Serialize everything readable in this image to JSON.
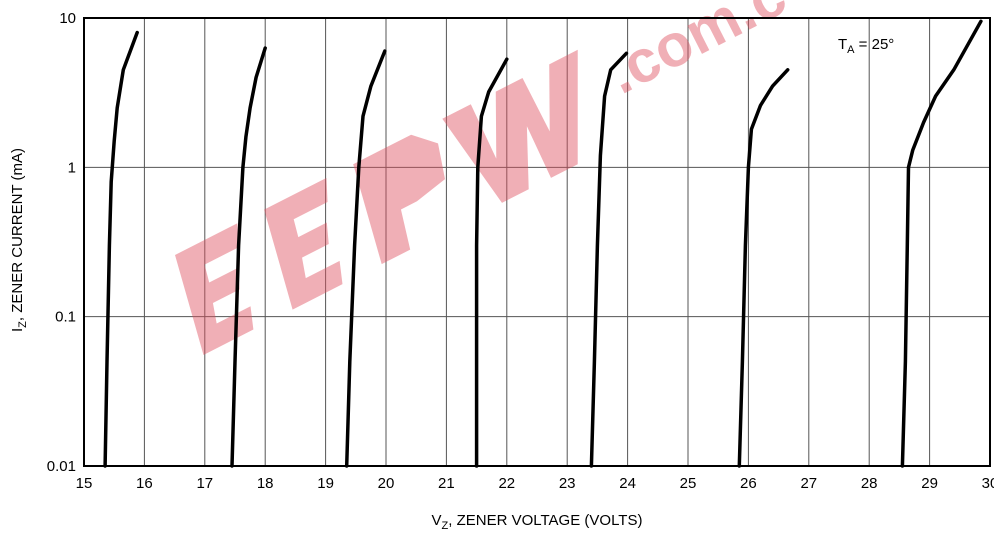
{
  "chart_data": {
    "type": "line",
    "title": "",
    "xlabel": {
      "main": "V",
      "sub": "Z",
      "rest": ", ZENER VOLTAGE (VOLTS)"
    },
    "ylabel": {
      "main": "I",
      "sub": "Z",
      "rest": ", ZENER CURRENT (mA)"
    },
    "xlim": [
      15,
      30
    ],
    "ylim": [
      0.01,
      10
    ],
    "yscale": "log",
    "grid": true,
    "x_ticks": [
      "15",
      "16",
      "17",
      "18",
      "19",
      "20",
      "21",
      "22",
      "23",
      "24",
      "25",
      "26",
      "27",
      "28",
      "29",
      "30"
    ],
    "y_ticks": [
      {
        "label": "0.01",
        "value": 0.01
      },
      {
        "label": "0.1",
        "value": 0.1
      },
      {
        "label": "1",
        "value": 1
      },
      {
        "label": "10",
        "value": 10
      }
    ],
    "annotation": {
      "main": "T",
      "sub": "A",
      "rest": " = 25°"
    },
    "series": [
      {
        "points": [
          [
            15.35,
            0.01
          ],
          [
            15.38,
            0.05
          ],
          [
            15.42,
            0.3
          ],
          [
            15.45,
            0.8
          ],
          [
            15.5,
            1.5
          ],
          [
            15.55,
            2.5
          ],
          [
            15.65,
            4.5
          ],
          [
            15.88,
            8
          ]
        ]
      },
      {
        "points": [
          [
            17.45,
            0.01
          ],
          [
            17.5,
            0.05
          ],
          [
            17.56,
            0.3
          ],
          [
            17.63,
            1.0
          ],
          [
            17.68,
            1.6
          ],
          [
            17.75,
            2.5
          ],
          [
            17.85,
            4
          ],
          [
            18.0,
            6.3
          ]
        ]
      },
      {
        "points": [
          [
            19.35,
            0.01
          ],
          [
            19.4,
            0.05
          ],
          [
            19.48,
            0.3
          ],
          [
            19.55,
            1.0
          ],
          [
            19.62,
            2.2
          ],
          [
            19.75,
            3.5
          ],
          [
            19.98,
            6.0
          ]
        ]
      },
      {
        "points": [
          [
            21.5,
            0.01
          ],
          [
            21.5,
            0.3
          ],
          [
            21.52,
            1.0
          ],
          [
            21.58,
            2.2
          ],
          [
            21.7,
            3.2
          ],
          [
            22.0,
            5.3
          ]
        ]
      },
      {
        "points": [
          [
            23.4,
            0.01
          ],
          [
            23.45,
            0.05
          ],
          [
            23.5,
            0.3
          ],
          [
            23.55,
            1.2
          ],
          [
            23.62,
            3.0
          ],
          [
            23.72,
            4.5
          ],
          [
            23.98,
            5.8
          ]
        ]
      },
      {
        "points": [
          [
            25.85,
            0.01
          ],
          [
            25.9,
            0.05
          ],
          [
            25.95,
            0.3
          ],
          [
            26.0,
            1.0
          ],
          [
            26.05,
            1.8
          ],
          [
            26.2,
            2.6
          ],
          [
            26.4,
            3.5
          ],
          [
            26.65,
            4.5
          ]
        ]
      },
      {
        "points": [
          [
            28.55,
            0.01
          ],
          [
            28.6,
            0.05
          ],
          [
            28.63,
            0.3
          ],
          [
            28.65,
            1.0
          ],
          [
            28.72,
            1.3
          ],
          [
            28.9,
            2.0
          ],
          [
            29.1,
            3.0
          ],
          [
            29.4,
            4.5
          ],
          [
            29.85,
            9.5
          ]
        ]
      }
    ],
    "colors": {
      "line": "#000000",
      "grid": "#555555",
      "watermark": "#e05060"
    }
  }
}
